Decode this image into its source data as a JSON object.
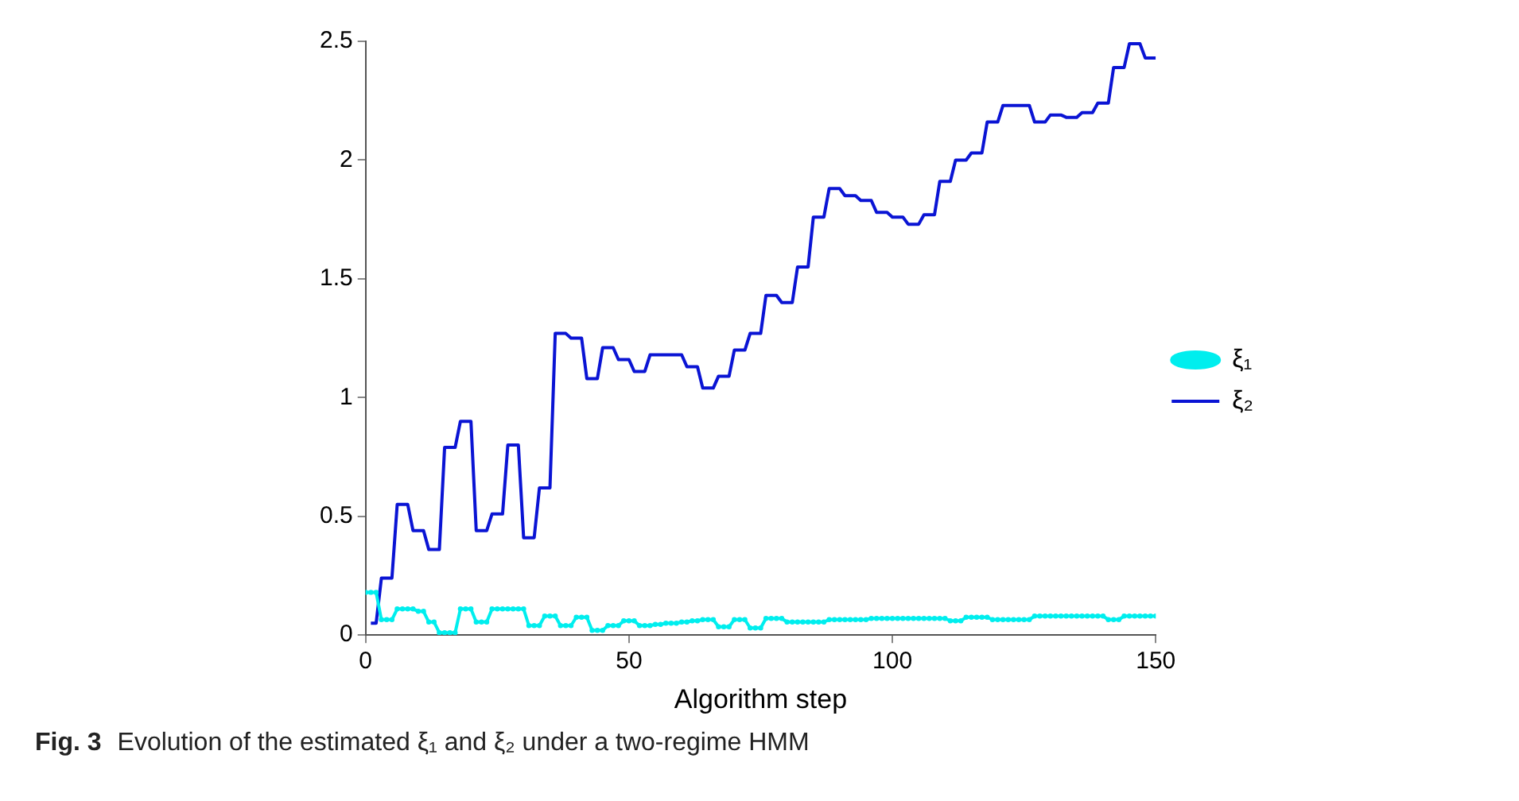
{
  "chart_data": {
    "type": "line",
    "xlabel": "Algorithm step",
    "annotations": [
      "Fig. 3",
      "Evolution of the estimated ξ₁ and ξ₂ under a two-regime HMM"
    ],
    "xlim": [
      0,
      150
    ],
    "xticks": [
      0,
      50,
      100,
      150
    ],
    "ylim": [
      0,
      2.5
    ],
    "yticks": [
      0,
      0.5,
      1,
      1.5,
      2,
      2.5
    ],
    "grid": false,
    "legend": "right",
    "line_style": "solid",
    "series": [
      {
        "name": "ξ₁",
        "color": "#00eeee",
        "marker": "circle",
        "x": [
          0,
          1,
          2,
          3,
          4,
          5,
          6,
          7,
          8,
          9,
          10,
          11,
          12,
          13,
          14,
          15,
          16,
          17,
          18,
          19,
          20,
          21,
          22,
          23,
          24,
          25,
          26,
          27,
          28,
          29,
          30,
          31,
          32,
          33,
          34,
          35,
          36,
          37,
          38,
          39,
          40,
          41,
          42,
          43,
          44,
          45,
          46,
          47,
          48,
          49,
          50,
          51,
          52,
          53,
          54,
          55,
          56,
          57,
          58,
          59,
          60,
          61,
          62,
          63,
          64,
          65,
          66,
          67,
          68,
          69,
          70,
          71,
          72,
          73,
          74,
          75,
          76,
          77,
          78,
          79,
          80,
          81,
          82,
          83,
          84,
          85,
          86,
          87,
          88,
          89,
          90,
          91,
          92,
          93,
          94,
          95,
          96,
          97,
          98,
          99,
          100,
          101,
          102,
          103,
          104,
          105,
          106,
          107,
          108,
          109,
          110,
          111,
          112,
          113,
          114,
          115,
          116,
          117,
          118,
          119,
          120,
          121,
          122,
          123,
          124,
          125,
          126,
          127,
          128,
          129,
          130,
          131,
          132,
          133,
          134,
          135,
          136,
          137,
          138,
          139,
          140,
          141,
          142,
          143,
          144,
          145,
          146,
          147,
          148,
          149,
          150
        ],
        "values": [
          0.18,
          0.18,
          0.18,
          0.065,
          0.065,
          0.065,
          0.11,
          0.11,
          0.11,
          0.11,
          0.1,
          0.1,
          0.055,
          0.055,
          0.01,
          0.01,
          0.01,
          0.01,
          0.11,
          0.11,
          0.11,
          0.055,
          0.055,
          0.055,
          0.11,
          0.11,
          0.11,
          0.11,
          0.11,
          0.11,
          0.11,
          0.04,
          0.04,
          0.04,
          0.08,
          0.08,
          0.08,
          0.04,
          0.04,
          0.04,
          0.075,
          0.075,
          0.075,
          0.02,
          0.02,
          0.02,
          0.04,
          0.04,
          0.04,
          0.06,
          0.06,
          0.06,
          0.04,
          0.04,
          0.04,
          0.045,
          0.045,
          0.05,
          0.05,
          0.05,
          0.055,
          0.055,
          0.06,
          0.06,
          0.065,
          0.065,
          0.065,
          0.035,
          0.035,
          0.035,
          0.065,
          0.065,
          0.065,
          0.03,
          0.03,
          0.03,
          0.07,
          0.07,
          0.07,
          0.07,
          0.055,
          0.055,
          0.055,
          0.055,
          0.055,
          0.055,
          0.055,
          0.055,
          0.065,
          0.065,
          0.065,
          0.065,
          0.065,
          0.065,
          0.065,
          0.065,
          0.07,
          0.07,
          0.07,
          0.07,
          0.07,
          0.07,
          0.07,
          0.07,
          0.07,
          0.07,
          0.07,
          0.07,
          0.07,
          0.07,
          0.07,
          0.06,
          0.06,
          0.06,
          0.075,
          0.075,
          0.075,
          0.075,
          0.075,
          0.065,
          0.065,
          0.065,
          0.065,
          0.065,
          0.065,
          0.065,
          0.065,
          0.08,
          0.08,
          0.08,
          0.08,
          0.08,
          0.08,
          0.08,
          0.08,
          0.08,
          0.08,
          0.08,
          0.08,
          0.08,
          0.08,
          0.065,
          0.065,
          0.065,
          0.08,
          0.08,
          0.08,
          0.08,
          0.08,
          0.08,
          0.08
        ]
      },
      {
        "name": "ξ₂",
        "color": "#0a14d4",
        "marker": "none",
        "x": [
          1,
          2,
          3,
          5,
          6,
          8,
          9,
          11,
          12,
          14,
          15,
          17,
          18,
          20,
          21,
          23,
          24,
          26,
          27,
          29,
          30,
          32,
          33,
          35,
          36,
          38,
          39,
          41,
          42,
          44,
          45,
          47,
          48,
          50,
          51,
          53,
          54,
          60,
          61,
          63,
          64,
          66,
          67,
          69,
          70,
          72,
          73,
          75,
          76,
          78,
          79,
          81,
          82,
          84,
          85,
          87,
          88,
          90,
          91,
          93,
          94,
          96,
          97,
          99,
          100,
          102,
          103,
          105,
          106,
          108,
          109,
          111,
          112,
          114,
          115,
          117,
          118,
          120,
          121,
          126,
          127,
          129,
          130,
          132,
          133,
          135,
          136,
          138,
          139,
          141,
          142,
          144,
          145,
          147,
          148,
          150
        ],
        "values": [
          0.05,
          0.05,
          0.24,
          0.24,
          0.55,
          0.55,
          0.44,
          0.44,
          0.36,
          0.36,
          0.79,
          0.79,
          0.9,
          0.9,
          0.44,
          0.44,
          0.51,
          0.51,
          0.8,
          0.8,
          0.41,
          0.41,
          0.62,
          0.62,
          1.27,
          1.27,
          1.25,
          1.25,
          1.08,
          1.08,
          1.21,
          1.21,
          1.16,
          1.16,
          1.11,
          1.11,
          1.18,
          1.18,
          1.13,
          1.13,
          1.04,
          1.04,
          1.09,
          1.09,
          1.2,
          1.2,
          1.27,
          1.27,
          1.43,
          1.43,
          1.4,
          1.4,
          1.55,
          1.55,
          1.76,
          1.76,
          1.88,
          1.88,
          1.85,
          1.85,
          1.83,
          1.83,
          1.78,
          1.78,
          1.76,
          1.76,
          1.73,
          1.73,
          1.77,
          1.77,
          1.91,
          1.91,
          2.0,
          2.0,
          2.03,
          2.03,
          2.16,
          2.16,
          2.23,
          2.23,
          2.16,
          2.16,
          2.19,
          2.19,
          2.18,
          2.18,
          2.2,
          2.2,
          2.24,
          2.24,
          2.39,
          2.39,
          2.49,
          2.49,
          2.43,
          2.43
        ]
      }
    ]
  }
}
